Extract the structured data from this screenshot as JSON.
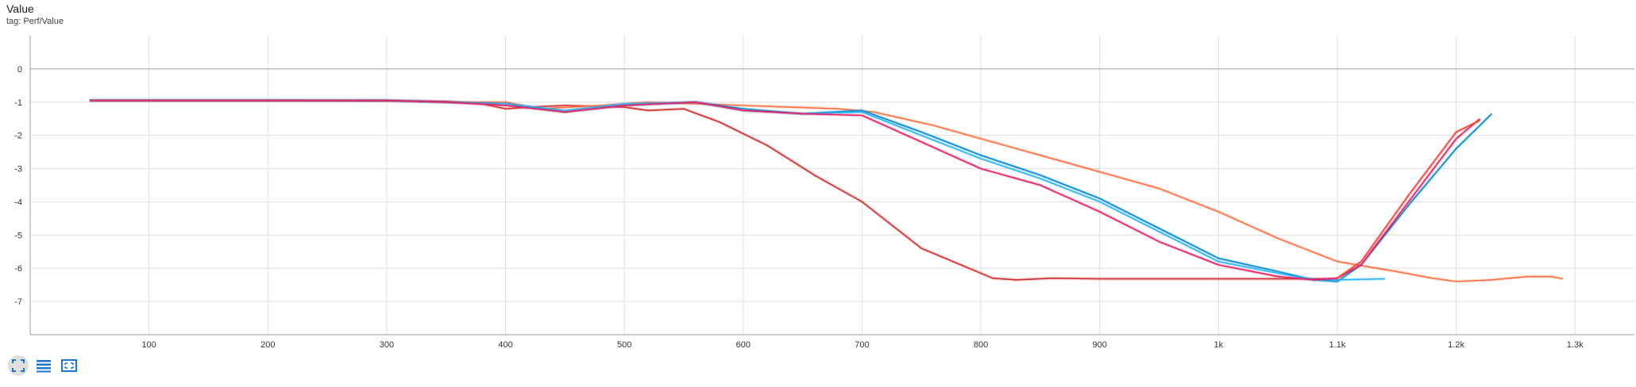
{
  "title": "Value",
  "subtitle": "tag: Perf/Value",
  "toolbar": {
    "icons": [
      "fit-domain-icon",
      "toggle-log-scale-icon",
      "zoom-region-icon"
    ],
    "accent": "#1976d2"
  },
  "chart_data": {
    "type": "line",
    "title": "Value",
    "xlabel": "",
    "ylabel": "",
    "xlim": [
      0,
      1350
    ],
    "ylim": [
      -8,
      1
    ],
    "x_ticks": [
      100,
      200,
      300,
      400,
      500,
      600,
      700,
      800,
      900,
      1000,
      1100,
      1200,
      1300
    ],
    "x_tick_labels": [
      "100",
      "200",
      "300",
      "400",
      "500",
      "600",
      "700",
      "800",
      "900",
      "1k",
      "1.1k",
      "1.2k",
      "1.3k"
    ],
    "y_ticks": [
      0,
      -1,
      -2,
      -3,
      -4,
      -5,
      -6,
      -7
    ],
    "y_tick_labels": [
      "0",
      "-1",
      "-2",
      "-3",
      "-4",
      "-5",
      "-6",
      "-7"
    ],
    "grid": true,
    "legend": "none",
    "series": [
      {
        "color": "#d32f2f",
        "x": [
          50,
          100,
          200,
          300,
          350,
          380,
          400,
          420,
          450,
          500,
          520,
          550,
          580,
          620,
          660,
          700,
          750,
          790,
          810,
          830,
          860,
          900,
          1000,
          1100
        ],
        "y": [
          -0.95,
          -0.95,
          -0.95,
          -0.96,
          -0.98,
          -1.05,
          -1.2,
          -1.15,
          -1.1,
          -1.15,
          -1.25,
          -1.2,
          -1.6,
          -2.3,
          -3.2,
          -4.0,
          -5.4,
          -6.0,
          -6.3,
          -6.35,
          -6.3,
          -6.32,
          -6.32,
          -6.32
        ]
      },
      {
        "color": "#ff7043",
        "x": [
          50,
          300,
          350,
          400,
          430,
          480,
          520,
          600,
          680,
          710,
          760,
          800,
          850,
          900,
          950,
          1000,
          1050,
          1100,
          1150,
          1180,
          1200,
          1230,
          1260,
          1280,
          1290
        ],
        "y": [
          -0.95,
          -0.95,
          -1.0,
          -1.0,
          -1.2,
          -1.1,
          -1.0,
          -1.1,
          -1.2,
          -1.3,
          -1.7,
          -2.1,
          -2.6,
          -3.1,
          -3.6,
          -4.3,
          -5.1,
          -5.8,
          -6.1,
          -6.3,
          -6.4,
          -6.35,
          -6.25,
          -6.25,
          -6.32
        ]
      },
      {
        "color": "#0288d1",
        "x": [
          50,
          300,
          350,
          400,
          450,
          500,
          560,
          600,
          650,
          700,
          750,
          800,
          850,
          900,
          950,
          1000,
          1050,
          1080,
          1100,
          1120,
          1160,
          1200,
          1230
        ],
        "y": [
          -0.95,
          -0.95,
          -1.0,
          -1.05,
          -1.3,
          -1.1,
          -1.0,
          -1.2,
          -1.35,
          -1.25,
          -1.9,
          -2.6,
          -3.2,
          -3.9,
          -4.8,
          -5.7,
          -6.1,
          -6.35,
          -6.4,
          -5.9,
          -4.1,
          -2.4,
          -1.35
        ]
      },
      {
        "color": "#29b6f6",
        "x": [
          50,
          300,
          350,
          400,
          450,
          500,
          560,
          600,
          650,
          700,
          750,
          800,
          850,
          900,
          950,
          1000,
          1050,
          1080,
          1100,
          1140
        ],
        "y": [
          -0.95,
          -0.95,
          -1.0,
          -1.05,
          -1.25,
          -1.05,
          -1.0,
          -1.25,
          -1.35,
          -1.3,
          -2.0,
          -2.7,
          -3.3,
          -4.0,
          -4.9,
          -5.8,
          -6.15,
          -6.35,
          -6.35,
          -6.32
        ]
      },
      {
        "color": "#e91e63",
        "x": [
          50,
          300,
          350,
          400,
          450,
          500,
          560,
          600,
          650,
          700,
          750,
          800,
          850,
          900,
          950,
          1000,
          1050,
          1080,
          1100,
          1120,
          1160,
          1200,
          1220
        ],
        "y": [
          -0.95,
          -0.95,
          -1.0,
          -1.1,
          -1.3,
          -1.1,
          -1.0,
          -1.25,
          -1.35,
          -1.4,
          -2.2,
          -3.0,
          -3.5,
          -4.3,
          -5.2,
          -5.9,
          -6.25,
          -6.35,
          -6.3,
          -5.9,
          -4.0,
          -2.1,
          -1.5
        ]
      },
      {
        "color": "#f44336",
        "x": [
          1100,
          1120,
          1160,
          1200,
          1220
        ],
        "y": [
          -6.3,
          -5.8,
          -3.8,
          -1.9,
          -1.55
        ]
      }
    ]
  }
}
